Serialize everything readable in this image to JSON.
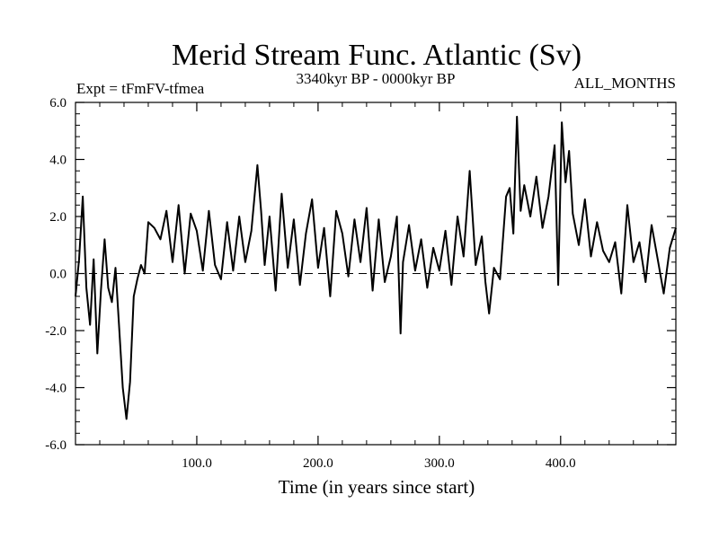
{
  "chart_data": {
    "type": "line",
    "title": "Merid Stream Func. Atlantic (Sv)",
    "subtitle_left": "Expt = tFmFV-tfmea",
    "subtitle_center": "3340kyr BP - 0000kyr BP",
    "subtitle_right": "ALL_MONTHS",
    "xlabel": "Time (in years since start)",
    "ylabel": "",
    "xlim": [
      0,
      495
    ],
    "ylim": [
      -6,
      6
    ],
    "x_ticks": [
      100,
      200,
      300,
      400
    ],
    "x_tick_labels": [
      "100.0",
      "200.0",
      "300.0",
      "400.0"
    ],
    "y_ticks": [
      6,
      4,
      2,
      0,
      -2,
      -4,
      -6
    ],
    "y_tick_labels": [
      "6.0",
      "4.0",
      "2.0",
      "0.0",
      "-2.0",
      "-4.0",
      "-6.0"
    ],
    "reference_line": {
      "y": 0,
      "style": "dashed"
    },
    "x": [
      0,
      3,
      6,
      9,
      12,
      15,
      18,
      21,
      24,
      27,
      30,
      33,
      36,
      39,
      42,
      45,
      48,
      51,
      54,
      57,
      60,
      65,
      70,
      75,
      80,
      85,
      90,
      95,
      100,
      105,
      110,
      115,
      120,
      125,
      130,
      135,
      140,
      145,
      150,
      153,
      156,
      160,
      165,
      170,
      175,
      180,
      185,
      190,
      195,
      200,
      205,
      210,
      215,
      220,
      225,
      230,
      235,
      240,
      245,
      250,
      255,
      260,
      265,
      268,
      270,
      275,
      280,
      285,
      290,
      295,
      300,
      305,
      310,
      315,
      320,
      325,
      330,
      335,
      338,
      341,
      345,
      350,
      355,
      358,
      361,
      364,
      367,
      370,
      375,
      380,
      385,
      390,
      395,
      398,
      401,
      404,
      407,
      410,
      415,
      420,
      425,
      430,
      435,
      440,
      445,
      450,
      455,
      460,
      465,
      470,
      475,
      480,
      485,
      490,
      495
    ],
    "series": [
      {
        "name": "ALL_MONTHS",
        "values": [
          -0.8,
          0.5,
          2.7,
          -0.5,
          -1.8,
          0.5,
          -2.8,
          -0.6,
          1.2,
          -0.5,
          -1.0,
          0.2,
          -1.9,
          -4.0,
          -5.1,
          -3.8,
          -0.8,
          -0.2,
          0.3,
          0.0,
          1.8,
          1.6,
          1.2,
          2.2,
          0.4,
          2.4,
          0.0,
          2.1,
          1.5,
          0.1,
          2.2,
          0.3,
          -0.2,
          1.8,
          0.1,
          2.0,
          0.4,
          1.5,
          3.8,
          2.2,
          0.3,
          2.0,
          -0.6,
          2.8,
          0.2,
          1.9,
          -0.4,
          1.4,
          2.6,
          0.2,
          1.6,
          -0.8,
          2.2,
          1.4,
          -0.1,
          1.9,
          0.4,
          2.3,
          -0.6,
          1.9,
          -0.3,
          0.6,
          2.0,
          -2.1,
          0.4,
          1.7,
          0.1,
          1.2,
          -0.5,
          0.9,
          0.1,
          1.5,
          -0.4,
          2.0,
          0.6,
          3.6,
          0.3,
          1.3,
          -0.3,
          -1.4,
          0.2,
          -0.2,
          2.7,
          3.0,
          1.4,
          5.5,
          2.2,
          3.1,
          2.0,
          3.4,
          1.6,
          2.7,
          4.5,
          -0.4,
          5.3,
          3.2,
          4.3,
          2.1,
          1.0,
          2.6,
          0.6,
          1.8,
          0.8,
          0.4,
          1.1,
          -0.7,
          2.4,
          0.4,
          1.1,
          -0.3,
          1.7,
          0.5,
          -0.7,
          0.9,
          1.6
        ]
      }
    ]
  }
}
